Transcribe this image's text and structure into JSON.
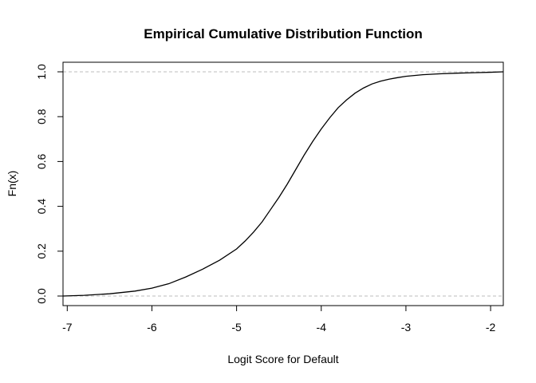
{
  "chart_data": {
    "type": "line",
    "title": "Empirical Cumulative Distribution Function",
    "xlabel": "Logit Score for Default",
    "ylabel": "Fn(x)",
    "xlim": [
      -7.05,
      -1.85
    ],
    "ylim": [
      0,
      1
    ],
    "x_ticks": [
      -7,
      -6,
      -5,
      -4,
      -3,
      -2
    ],
    "x_tick_labels": [
      "-7",
      "-6",
      "-5",
      "-4",
      "-3",
      "-2"
    ],
    "y_ticks": [
      0,
      0.2,
      0.4,
      0.6,
      0.8,
      1
    ],
    "y_tick_labels": [
      "0.0",
      "0.2",
      "0.4",
      "0.6",
      "0.8",
      "1.0"
    ],
    "reference_lines_y": [
      0,
      1
    ],
    "reference_line_color": "#bebebe",
    "line_color": "#000000",
    "grid": false,
    "legend": "none",
    "series": [
      {
        "x": [
          -7.05,
          -6.8,
          -6.5,
          -6.2,
          -6.0,
          -5.8,
          -5.6,
          -5.4,
          -5.2,
          -5.0,
          -4.9,
          -4.8,
          -4.7,
          -4.6,
          -4.5,
          -4.4,
          -4.3,
          -4.2,
          -4.1,
          -4.0,
          -3.9,
          -3.8,
          -3.7,
          -3.6,
          -3.5,
          -3.4,
          -3.3,
          -3.2,
          -3.1,
          -3.0,
          -2.8,
          -2.6,
          -2.4,
          -2.2,
          -2.0,
          -1.85
        ],
        "y": [
          0.0,
          0.003,
          0.01,
          0.022,
          0.035,
          0.055,
          0.085,
          0.12,
          0.16,
          0.21,
          0.245,
          0.285,
          0.33,
          0.385,
          0.44,
          0.5,
          0.565,
          0.63,
          0.69,
          0.745,
          0.795,
          0.84,
          0.875,
          0.905,
          0.928,
          0.946,
          0.958,
          0.967,
          0.974,
          0.98,
          0.987,
          0.991,
          0.994,
          0.996,
          0.998,
          1.0
        ]
      }
    ]
  }
}
